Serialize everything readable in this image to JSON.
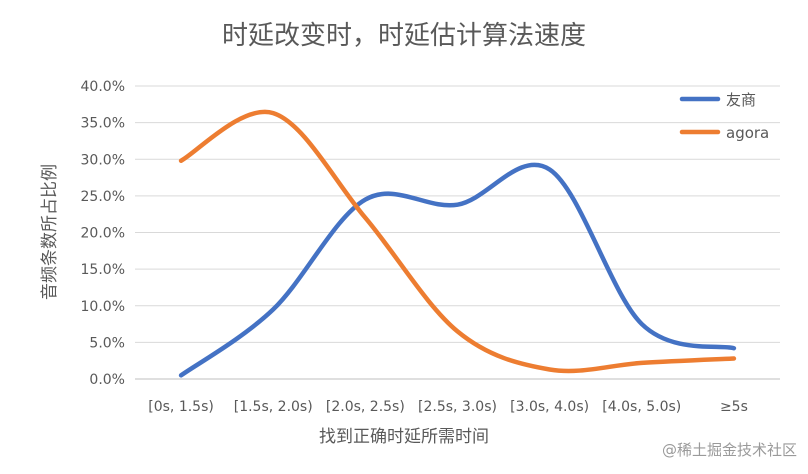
{
  "chart_data": {
    "type": "line",
    "title": "时延改变时，时延估计算法速度",
    "xlabel": "找到正确时延所需时间",
    "ylabel": "音频条数所占比例",
    "categories": [
      "[0s, 1.5s)",
      "[1.5s, 2.0s)",
      "[2.0s, 2.5s)",
      "[2.5s, 3.0s)",
      "[3.0s, 4.0s)",
      "[4.0s, 5.0s)",
      "≥5s"
    ],
    "y_ticks": [
      "0.0%",
      "5.0%",
      "10.0%",
      "15.0%",
      "20.0%",
      "25.0%",
      "30.0%",
      "35.0%",
      "40.0%"
    ],
    "ylim": [
      0,
      40
    ],
    "grid": true,
    "legend_position": "top-right",
    "series": [
      {
        "name": "友商",
        "color": "#4472C4",
        "values": [
          0.5,
          9.5,
          24.5,
          23.8,
          28.6,
          7.5,
          4.2
        ]
      },
      {
        "name": "agora",
        "color": "#ED7D31",
        "values": [
          29.8,
          36.3,
          22.0,
          6.5,
          1.3,
          2.2,
          2.8
        ]
      }
    ]
  },
  "watermark": "@稀土掘金技术社区"
}
